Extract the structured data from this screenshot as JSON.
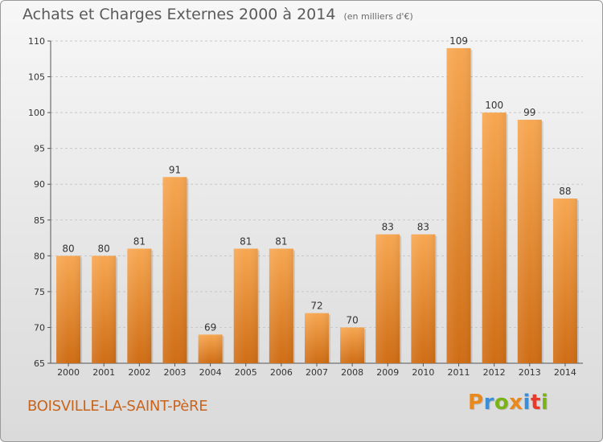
{
  "header": {
    "title": "Achats et Charges Externes 2000 à 2014",
    "subtitle": "(en milliers d'€)"
  },
  "footer": {
    "town": "BOISVILLE-LA-SAINT-PèRE",
    "logo_text": "Proxiti",
    "logo_colors": [
      "#e8891e",
      "#3a8ed8",
      "#7ab317",
      "#e8891e",
      "#3a8ed8",
      "#e83a2a",
      "#7ab317"
    ]
  },
  "colors": {
    "bar_light": "#f7a751",
    "bar_dark": "#cf6d15",
    "grid": "#c8c8c8",
    "text": "#333333"
  },
  "chart_data": {
    "type": "bar",
    "categories": [
      "2000",
      "2001",
      "2002",
      "2003",
      "2004",
      "2005",
      "2006",
      "2007",
      "2008",
      "2009",
      "2010",
      "2011",
      "2012",
      "2013",
      "2014"
    ],
    "values": [
      80,
      80,
      81,
      91,
      69,
      81,
      81,
      72,
      70,
      83,
      83,
      109,
      100,
      99,
      88
    ],
    "data_labels": [
      "80",
      "80",
      "81",
      "91",
      "69",
      "81",
      "81",
      "72",
      "70",
      "83",
      "83",
      "109",
      "100",
      "99",
      "88"
    ],
    "ylim": [
      65,
      110
    ],
    "yticks": [
      65,
      70,
      75,
      80,
      85,
      90,
      95,
      100,
      105,
      110
    ],
    "grid": true,
    "legend": false
  }
}
